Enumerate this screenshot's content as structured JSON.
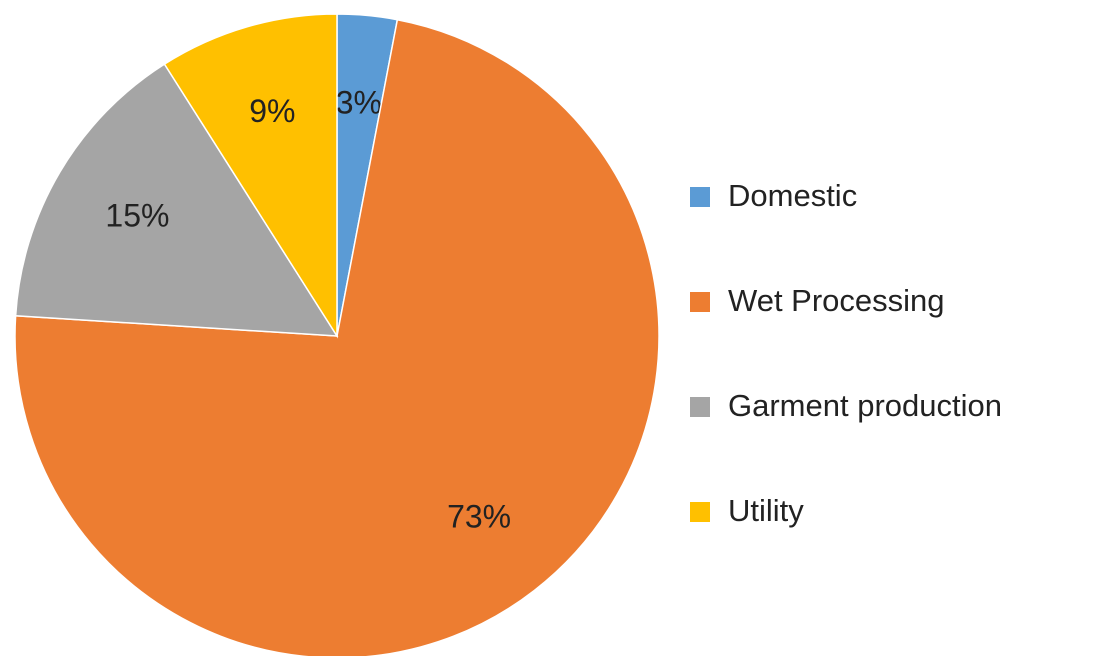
{
  "chart_data": {
    "type": "pie",
    "labels": [
      "Domestic",
      "Wet Processing",
      "Garment production",
      "Utility"
    ],
    "values": [
      3,
      73,
      15,
      9
    ],
    "value_labels": [
      "3%",
      "73%",
      "15%",
      "9%"
    ],
    "colors": [
      "#5b9bd5",
      "#ed7d31",
      "#a5a5a5",
      "#ffc000"
    ],
    "legend": "right"
  }
}
